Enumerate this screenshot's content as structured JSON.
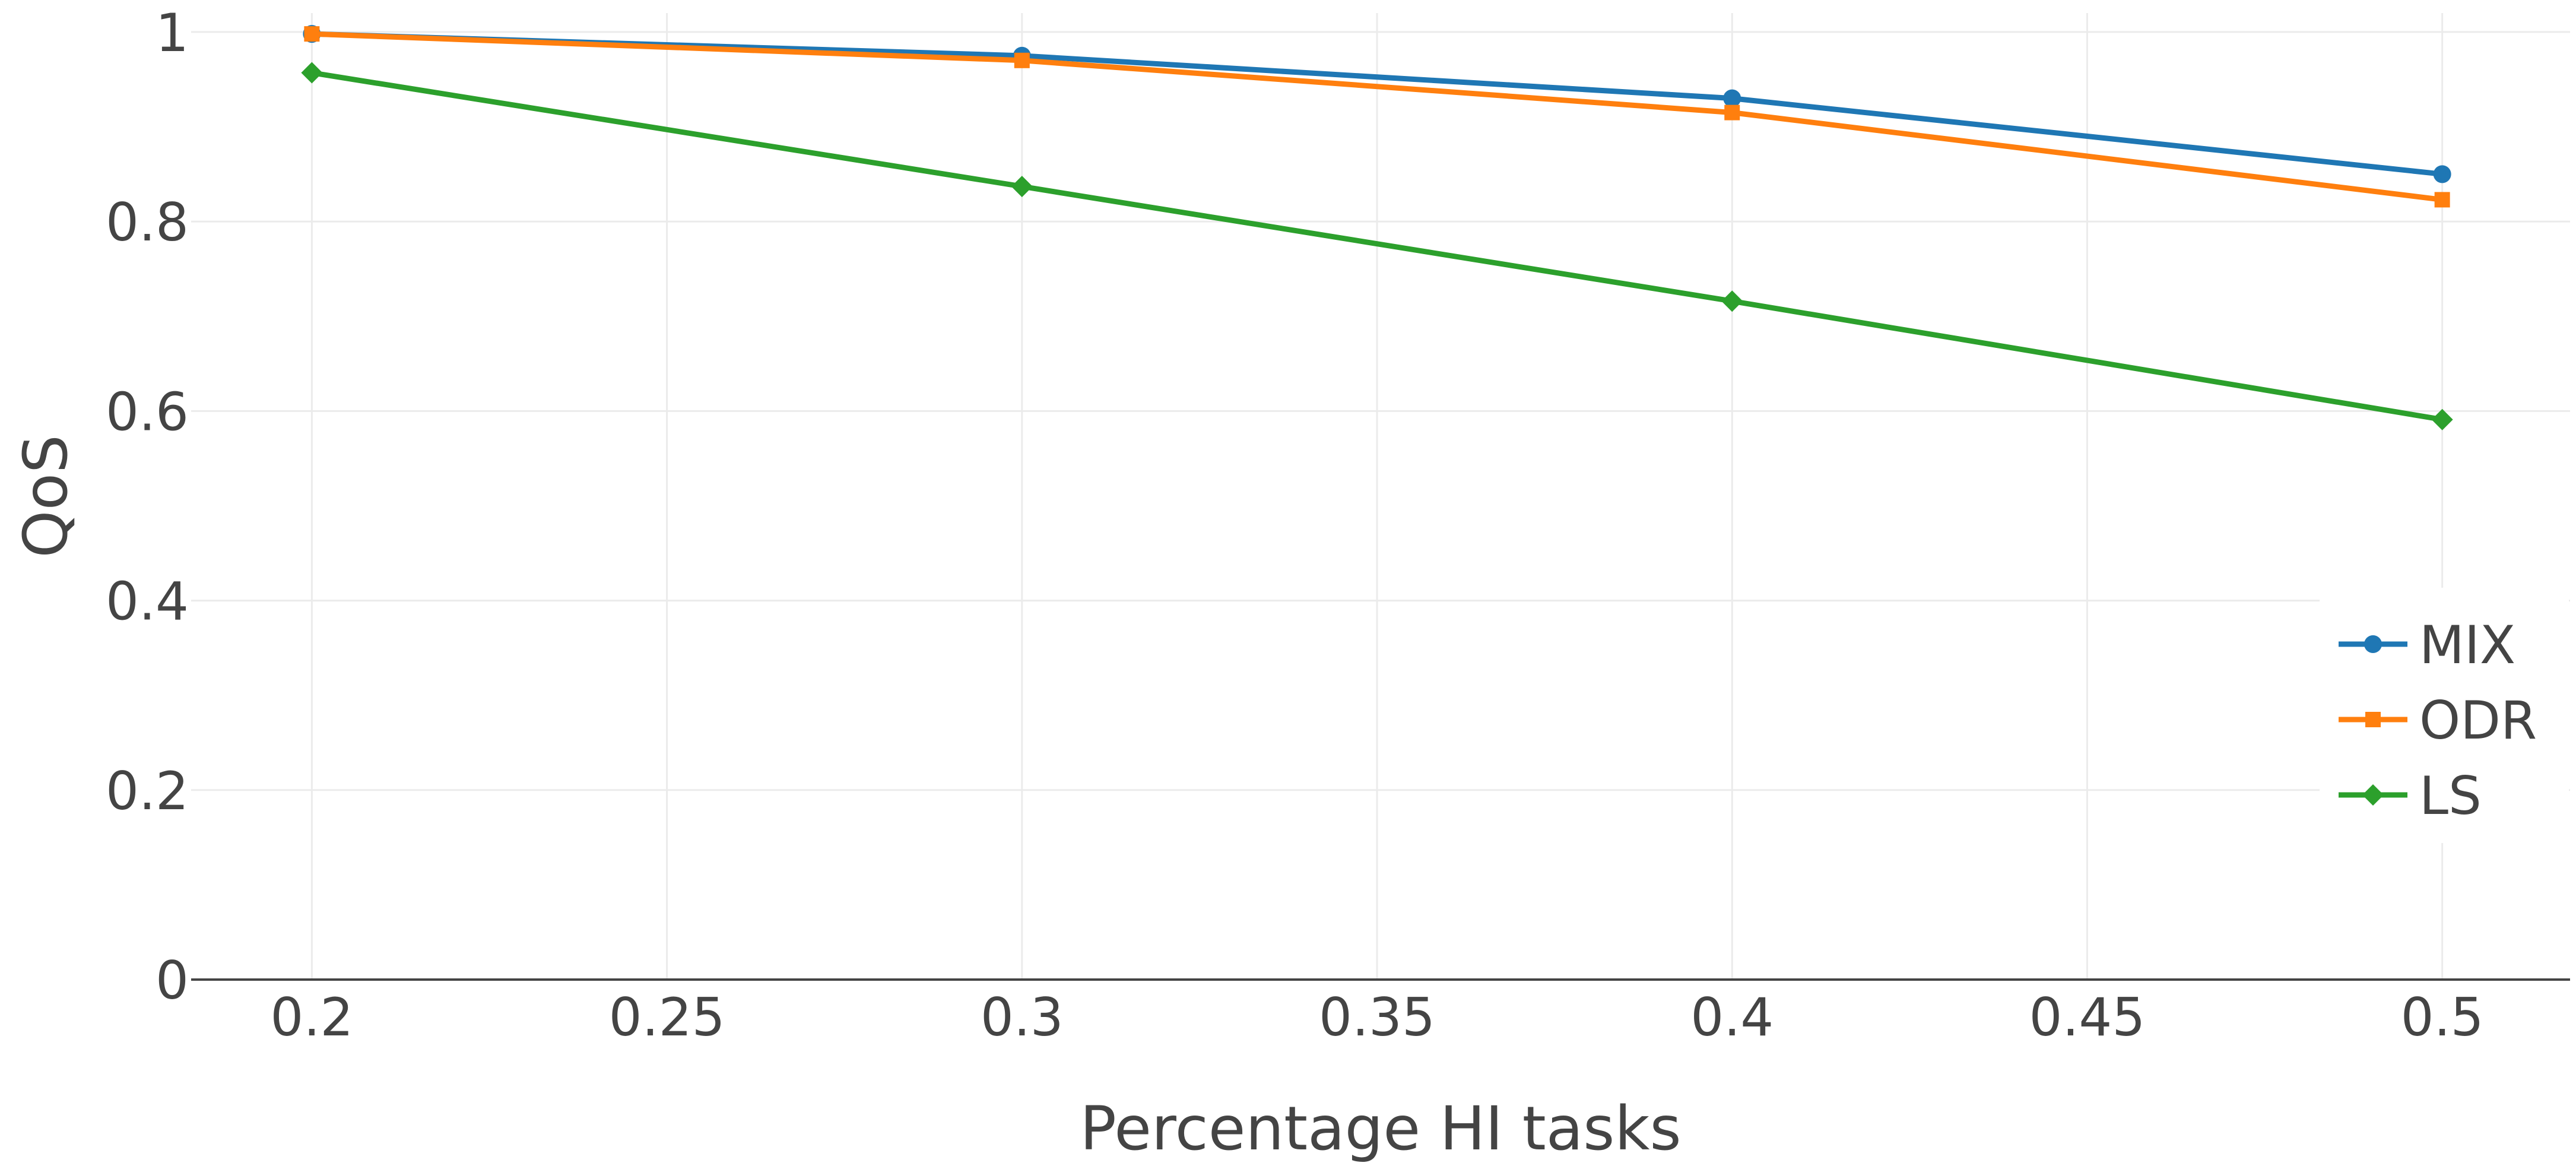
{
  "chart_data": {
    "type": "line",
    "title": "",
    "xlabel": "Percentage HI tasks",
    "ylabel": "QoS",
    "xlim": [
      0.183,
      0.518
    ],
    "ylim": [
      0,
      1.02
    ],
    "x_ticks": [
      0.2,
      0.25,
      0.3,
      0.35,
      0.4,
      0.45,
      0.5
    ],
    "x_tick_labels": [
      "0.2",
      "0.25",
      "0.3",
      "0.35",
      "0.4",
      "0.45",
      "0.5"
    ],
    "y_ticks": [
      0,
      0.2,
      0.4,
      0.6,
      0.8,
      1
    ],
    "y_tick_labels": [
      "0",
      "0.2",
      "0.4",
      "0.6",
      "0.8",
      "1"
    ],
    "grid": true,
    "legend_position": "bottom-right",
    "x": [
      0.2,
      0.3,
      0.4,
      0.5
    ],
    "series": [
      {
        "name": "MIX",
        "values": [
          0.998,
          0.975,
          0.93,
          0.85
        ],
        "color": "#1f77b4",
        "marker": "circle"
      },
      {
        "name": "ODR",
        "values": [
          0.998,
          0.97,
          0.915,
          0.823
        ],
        "color": "#ff7f0e",
        "marker": "square"
      },
      {
        "name": "LS",
        "values": [
          0.957,
          0.837,
          0.716,
          0.591
        ],
        "color": "#2ca02c",
        "marker": "diamond"
      }
    ]
  }
}
